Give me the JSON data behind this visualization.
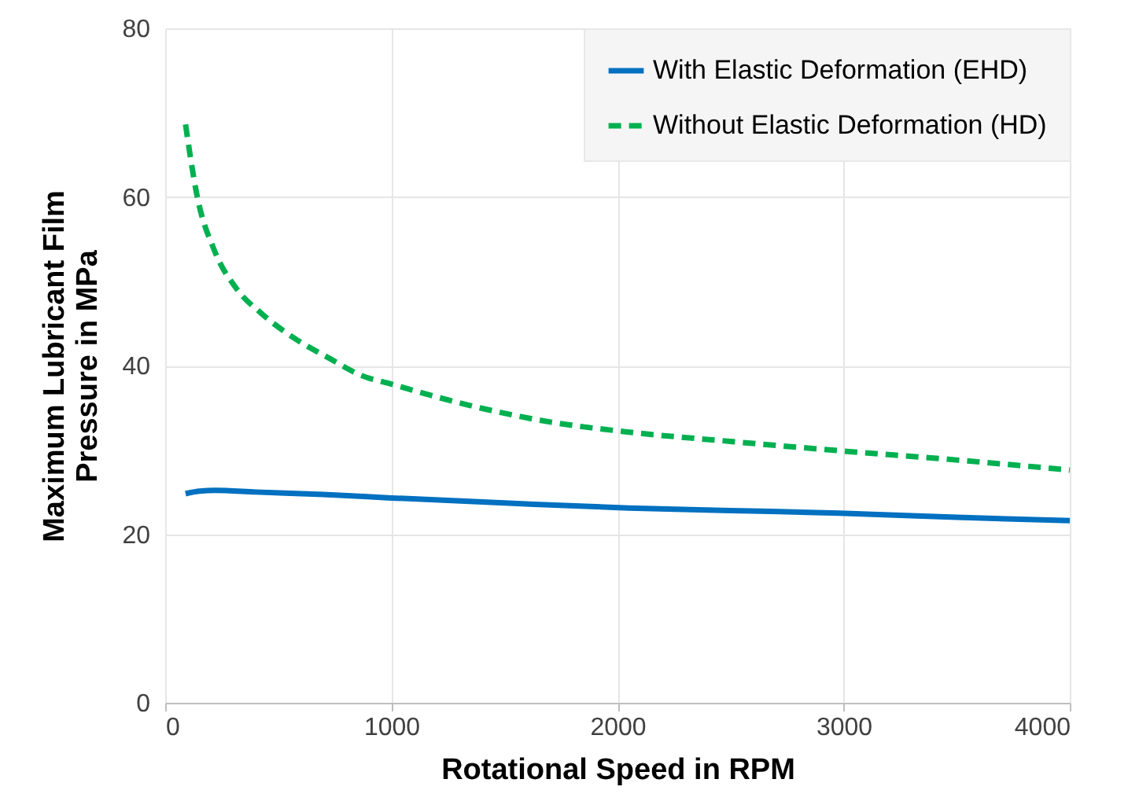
{
  "chart_data": {
    "type": "line",
    "xlabel": "Rotational Speed in RPM",
    "ylabel": "Maximum Lubricant Film Pressure in MPa",
    "xlim": [
      0,
      4000
    ],
    "xticks": [
      0,
      1000,
      2000,
      3000,
      4000
    ],
    "ylim": [
      0,
      80
    ],
    "yticks": [
      0,
      20,
      40,
      60,
      80
    ],
    "grid": true,
    "legend": "top right",
    "marker": "none",
    "series": [
      {
        "name": "With Elastic Deformation (EHD)",
        "color": "#0070c0",
        "line_style": "solid",
        "x": [
          90,
          150,
          220,
          400,
          700,
          1000,
          1500,
          2050,
          2500,
          2980,
          3500,
          4000
        ],
        "values": [
          24.8,
          25.1,
          25.2,
          25.0,
          24.7,
          24.3,
          23.7,
          23.1,
          22.8,
          22.5,
          22.0,
          21.6
        ]
      },
      {
        "name": "Without Elastic Deformation (HD)",
        "color": "#00b050",
        "line_style": "dashed",
        "x": [
          90,
          139,
          220,
          313,
          429,
          568,
          730,
          870,
          1000,
          1357,
          1704,
          2052,
          2500,
          2980,
          3500,
          4000
        ],
        "values": [
          68.6,
          60.4,
          53.5,
          49.2,
          46.1,
          43.3,
          40.8,
          38.8,
          37.8,
          35.2,
          33.3,
          32.1,
          31.0,
          29.9,
          28.8,
          27.6
        ]
      }
    ]
  }
}
